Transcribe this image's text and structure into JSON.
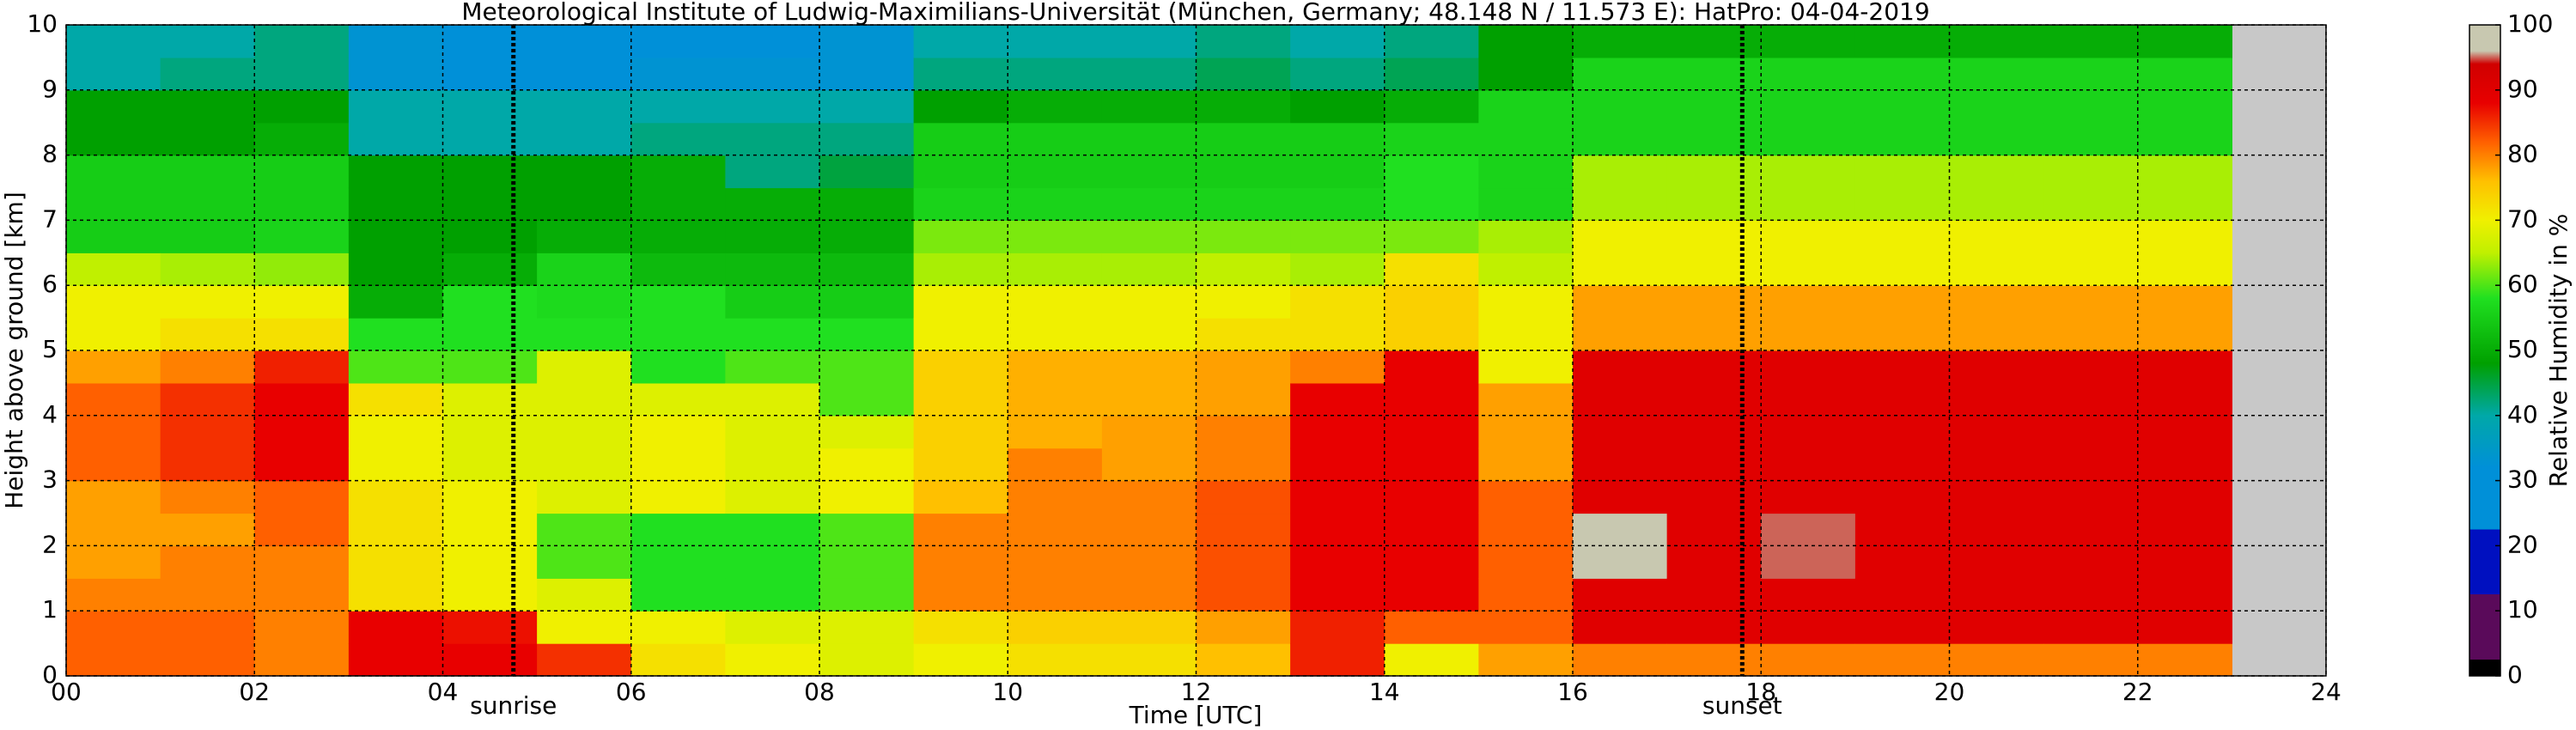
{
  "chart_data": {
    "type": "heatmap",
    "title": "Meteorological Institute of Ludwig-Maximilians-Universität (München, Germany; 48.148 N / 11.573 E):    HatPro: 04-04-2019",
    "xlabel": "Time [UTC]",
    "ylabel": "Height above ground [km]",
    "colorbar_label": "Relative Humidity in %",
    "x": [
      0,
      1,
      2,
      3,
      4,
      5,
      6,
      7,
      8,
      9,
      10,
      11,
      12,
      13,
      14,
      15,
      16,
      17,
      18,
      19,
      20,
      21,
      22
    ],
    "y": [
      0,
      0.5,
      1,
      1.5,
      2,
      2.5,
      3,
      3.5,
      4,
      4.5,
      5,
      5.5,
      6,
      6.5,
      7,
      7.5,
      8,
      8.5,
      9,
      9.5
    ],
    "z": [
      [
        82,
        82,
        80,
        78,
        78,
        78,
        82,
        82,
        82,
        78,
        70,
        70,
        65,
        55,
        55,
        55,
        48,
        48,
        40,
        40
      ],
      [
        82,
        82,
        80,
        80,
        78,
        80,
        85,
        85,
        85,
        80,
        72,
        70,
        64,
        55,
        55,
        55,
        48,
        48,
        42,
        40
      ],
      [
        80,
        80,
        80,
        80,
        82,
        82,
        88,
        88,
        88,
        86,
        72,
        70,
        63,
        56,
        55,
        55,
        50,
        48,
        42,
        42
      ],
      [
        88,
        88,
        72,
        72,
        72,
        72,
        70,
        70,
        72,
        60,
        58,
        50,
        48,
        48,
        48,
        48,
        40,
        40,
        33,
        33
      ],
      [
        88,
        87,
        70,
        70,
        70,
        70,
        68,
        68,
        68,
        60,
        58,
        58,
        50,
        48,
        48,
        48,
        40,
        40,
        32,
        32
      ],
      [
        85,
        70,
        68,
        60,
        60,
        68,
        68,
        68,
        68,
        68,
        58,
        57,
        56,
        50,
        48,
        48,
        40,
        40,
        32,
        32
      ],
      [
        72,
        70,
        58,
        58,
        58,
        70,
        70,
        70,
        68,
        58,
        58,
        58,
        52,
        50,
        50,
        50,
        42,
        40,
        33,
        32
      ],
      [
        70,
        68,
        58,
        58,
        58,
        68,
        68,
        68,
        68,
        60,
        58,
        55,
        52,
        50,
        50,
        42,
        42,
        40,
        33,
        32
      ],
      [
        68,
        68,
        60,
        60,
        60,
        70,
        70,
        68,
        60,
        60,
        58,
        55,
        52,
        50,
        50,
        45,
        42,
        40,
        33,
        33
      ],
      [
        70,
        72,
        80,
        80,
        80,
        76,
        74,
        74,
        74,
        74,
        70,
        70,
        64,
        62,
        56,
        55,
        55,
        48,
        42,
        40
      ],
      [
        72,
        74,
        80,
        80,
        80,
        80,
        80,
        77,
        77,
        77,
        70,
        70,
        64,
        62,
        56,
        55,
        55,
        50,
        42,
        40
      ],
      [
        72,
        74,
        80,
        80,
        80,
        80,
        78,
        78,
        77,
        77,
        70,
        70,
        64,
        62,
        56,
        55,
        55,
        50,
        42,
        40
      ],
      [
        76,
        78,
        83,
        83,
        83,
        83,
        80,
        80,
        78,
        78,
        72,
        70,
        65,
        62,
        56,
        55,
        55,
        50,
        44,
        42
      ],
      [
        86,
        86,
        88,
        88,
        88,
        88,
        88,
        88,
        88,
        80,
        72,
        72,
        64,
        62,
        56,
        55,
        55,
        48,
        42,
        40
      ],
      [
        70,
        82,
        88,
        88,
        88,
        88,
        88,
        88,
        88,
        88,
        74,
        74,
        72,
        62,
        58,
        58,
        56,
        50,
        44,
        42
      ],
      [
        78,
        82,
        82,
        82,
        82,
        82,
        78,
        78,
        78,
        70,
        70,
        70,
        65,
        64,
        56,
        56,
        56,
        56,
        48,
        48
      ],
      [
        80,
        90,
        90,
        97,
        97,
        90,
        90,
        90,
        90,
        90,
        78,
        78,
        70,
        70,
        64,
        64,
        56,
        56,
        56,
        50
      ],
      [
        80,
        90,
        90,
        90,
        90,
        90,
        90,
        90,
        90,
        90,
        78,
        78,
        70,
        70,
        64,
        64,
        56,
        56,
        56,
        50
      ],
      [
        80,
        90,
        90,
        95,
        95,
        90,
        90,
        90,
        90,
        90,
        78,
        78,
        70,
        70,
        64,
        64,
        56,
        56,
        56,
        50
      ],
      [
        80,
        90,
        90,
        90,
        90,
        90,
        90,
        90,
        90,
        90,
        78,
        78,
        70,
        70,
        64,
        64,
        56,
        56,
        56,
        50
      ],
      [
        80,
        90,
        90,
        90,
        90,
        90,
        90,
        90,
        90,
        90,
        78,
        78,
        70,
        70,
        64,
        64,
        56,
        56,
        56,
        50
      ],
      [
        80,
        90,
        90,
        90,
        90,
        90,
        90,
        90,
        90,
        90,
        78,
        78,
        70,
        70,
        64,
        64,
        56,
        56,
        56,
        50
      ],
      [
        80,
        90,
        90,
        90,
        90,
        90,
        90,
        90,
        90,
        90,
        78,
        78,
        70,
        70,
        64,
        64,
        56,
        56,
        56,
        50
      ]
    ],
    "xlim": [
      0,
      24
    ],
    "ylim": [
      0,
      10
    ],
    "xticks": [
      {
        "value": 0,
        "label": "00"
      },
      {
        "value": 2,
        "label": "02"
      },
      {
        "value": 4,
        "label": "04"
      },
      {
        "value": 6,
        "label": "06"
      },
      {
        "value": 8,
        "label": "08"
      },
      10,
      12,
      14,
      16,
      18,
      20,
      22,
      24
    ],
    "yticks": [
      0,
      1,
      2,
      3,
      4,
      5,
      6,
      7,
      8,
      9,
      10
    ],
    "clim": [
      0,
      100
    ],
    "cticks": [
      0,
      10,
      20,
      30,
      40,
      50,
      60,
      70,
      80,
      90,
      100
    ],
    "colorscale": [
      [
        0,
        "#000000"
      ],
      [
        2.5,
        "#000000"
      ],
      [
        2.5,
        "#5a0a5a"
      ],
      [
        12.5,
        "#5a0a5a"
      ],
      [
        12.5,
        "#0010c0"
      ],
      [
        22.5,
        "#0010c0"
      ],
      [
        22.5,
        "#0090d8"
      ],
      [
        32,
        "#0090d8"
      ],
      [
        40,
        "#00a8a8"
      ],
      [
        48,
        "#00a000"
      ],
      [
        58,
        "#20e020"
      ],
      [
        65,
        "#c0f000"
      ],
      [
        70,
        "#f0f000"
      ],
      [
        76,
        "#ffc000"
      ],
      [
        82,
        "#ff6000"
      ],
      [
        88,
        "#e80000"
      ],
      [
        94,
        "#d00000"
      ],
      [
        96,
        "#c8c8b0"
      ],
      [
        100,
        "#c8c8b0"
      ]
    ],
    "background": "#c8c8c8",
    "grid": true,
    "annotations": [
      {
        "x": 4.75,
        "label": "sunrise"
      },
      {
        "x": 17.8,
        "label": "sunset"
      }
    ]
  }
}
